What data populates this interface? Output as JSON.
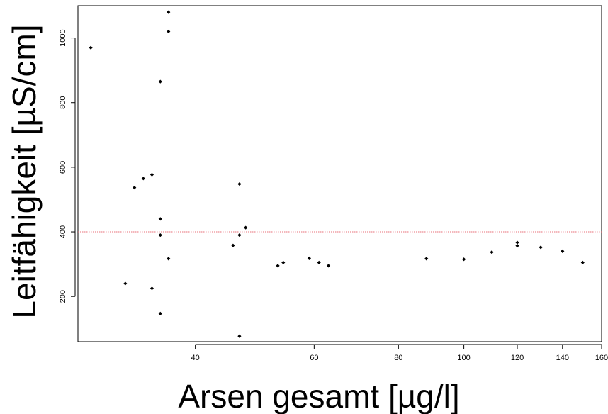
{
  "chart_data": {
    "type": "scatter",
    "title": "",
    "xlabel": "Arsen gesamt [µg/l]",
    "ylabel": "Leitfähigkeit [µS/cm]",
    "x_scale": "log",
    "xlim": [
      26.8,
      160
    ],
    "ylim": [
      60,
      1100
    ],
    "x_ticks": [
      40,
      60,
      80,
      100,
      120,
      140,
      160
    ],
    "x_tick_labels": [
      "40",
      "60",
      "80",
      "100",
      "120",
      "140",
      "160"
    ],
    "y_ticks": [
      200,
      400,
      600,
      800,
      1000
    ],
    "y_tick_labels": [
      "200",
      "400",
      "600",
      "800",
      "1000"
    ],
    "reference_line": {
      "y": 400,
      "color": "#e8707a",
      "style": "dotted"
    },
    "marker_color": "#000000",
    "grid": false,
    "legend": "none",
    "series": [
      {
        "points": [
          {
            "x": 28.0,
            "y": 970
          },
          {
            "x": 31.5,
            "y": 240
          },
          {
            "x": 32.5,
            "y": 537
          },
          {
            "x": 33.5,
            "y": 565
          },
          {
            "x": 34.5,
            "y": 577
          },
          {
            "x": 34.5,
            "y": 225
          },
          {
            "x": 35.5,
            "y": 865
          },
          {
            "x": 35.5,
            "y": 440
          },
          {
            "x": 35.5,
            "y": 390
          },
          {
            "x": 35.5,
            "y": 147
          },
          {
            "x": 36.5,
            "y": 1080
          },
          {
            "x": 36.5,
            "y": 1020
          },
          {
            "x": 36.5,
            "y": 317
          },
          {
            "x": 45.5,
            "y": 358
          },
          {
            "x": 46.5,
            "y": 548
          },
          {
            "x": 46.5,
            "y": 390
          },
          {
            "x": 46.5,
            "y": 77
          },
          {
            "x": 47.5,
            "y": 413
          },
          {
            "x": 53.0,
            "y": 295
          },
          {
            "x": 54.0,
            "y": 305
          },
          {
            "x": 59.0,
            "y": 318
          },
          {
            "x": 61.0,
            "y": 305
          },
          {
            "x": 63.0,
            "y": 295
          },
          {
            "x": 88.0,
            "y": 317
          },
          {
            "x": 100.0,
            "y": 315
          },
          {
            "x": 110.0,
            "y": 337
          },
          {
            "x": 120.0,
            "y": 367
          },
          {
            "x": 120.0,
            "y": 357
          },
          {
            "x": 130.0,
            "y": 352
          },
          {
            "x": 140.0,
            "y": 340
          },
          {
            "x": 150.0,
            "y": 305
          }
        ]
      }
    ]
  }
}
